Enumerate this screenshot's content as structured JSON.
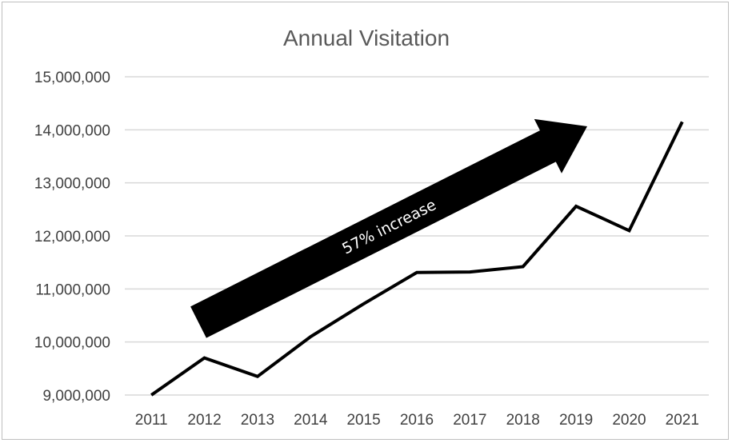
{
  "chart_data": {
    "type": "line",
    "title": "Annual Visitation",
    "xlabel": "",
    "ylabel": "",
    "categories": [
      "2011",
      "2012",
      "2013",
      "2014",
      "2015",
      "2016",
      "2017",
      "2018",
      "2019",
      "2020",
      "2021"
    ],
    "series": [
      {
        "values": [
          9000000,
          9700000,
          9350000,
          10100000,
          10720000,
          11310000,
          11320000,
          11420000,
          12560000,
          12100000,
          14150000
        ]
      }
    ],
    "ylim": [
      9000000,
      15000000
    ],
    "yticks": [
      9000000,
      10000000,
      11000000,
      12000000,
      13000000,
      14000000,
      15000000
    ],
    "ytick_labels": [
      "9,000,000",
      "10,000,000",
      "11,000,000",
      "12,000,000",
      "13,000,000",
      "14,000,000",
      "15,000,000"
    ],
    "grid": true,
    "legend": "none",
    "line_color": "#000000",
    "grid_color": "#d9d9d9",
    "annotation": {
      "text": "57% increase",
      "shape": "arrow",
      "color": "#000000"
    }
  }
}
